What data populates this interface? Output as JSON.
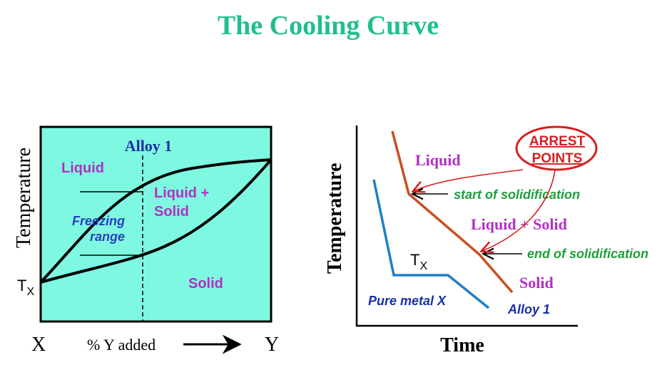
{
  "title": "The Cooling Curve",
  "colors": {
    "title": "#1fbf8f",
    "phase_bg": "#7ff8e1",
    "liquid_label": "#b22fc4",
    "alloy_label": "#1a2fa8",
    "freezing_label": "#2a3fc0",
    "arrest_red": "#d42020",
    "note_green": "#1f9f3a",
    "pure_metal_line": "#1f7fc4",
    "alloy_line": "#c8501e"
  },
  "phase_diagram": {
    "ylabel": "Temperature",
    "x_left": "X",
    "x_right": "Y",
    "x_axis_label": "% Y added",
    "tx_label": "T",
    "tx_sub": "X",
    "alloy_label": "Alloy 1",
    "region_liquid": "Liquid",
    "region_mix_line1": "Liquid +",
    "region_mix_line2": "Solid",
    "region_solid": "Solid",
    "freezing_line1": "Freezing",
    "freezing_line2": "range"
  },
  "cooling_curve": {
    "ylabel": "Temperature",
    "xlabel": "Time",
    "label_liquid": "Liquid",
    "label_mix": "Liquid + Solid",
    "label_solid": "Solid",
    "tx_label": "T",
    "tx_sub": "X",
    "pure_metal_label": "Pure metal X",
    "alloy_label": "Alloy 1",
    "arrest_line1": "ARREST",
    "arrest_line2": "POINTS",
    "start_note": "start of solidification",
    "end_note": "end of solidification"
  }
}
